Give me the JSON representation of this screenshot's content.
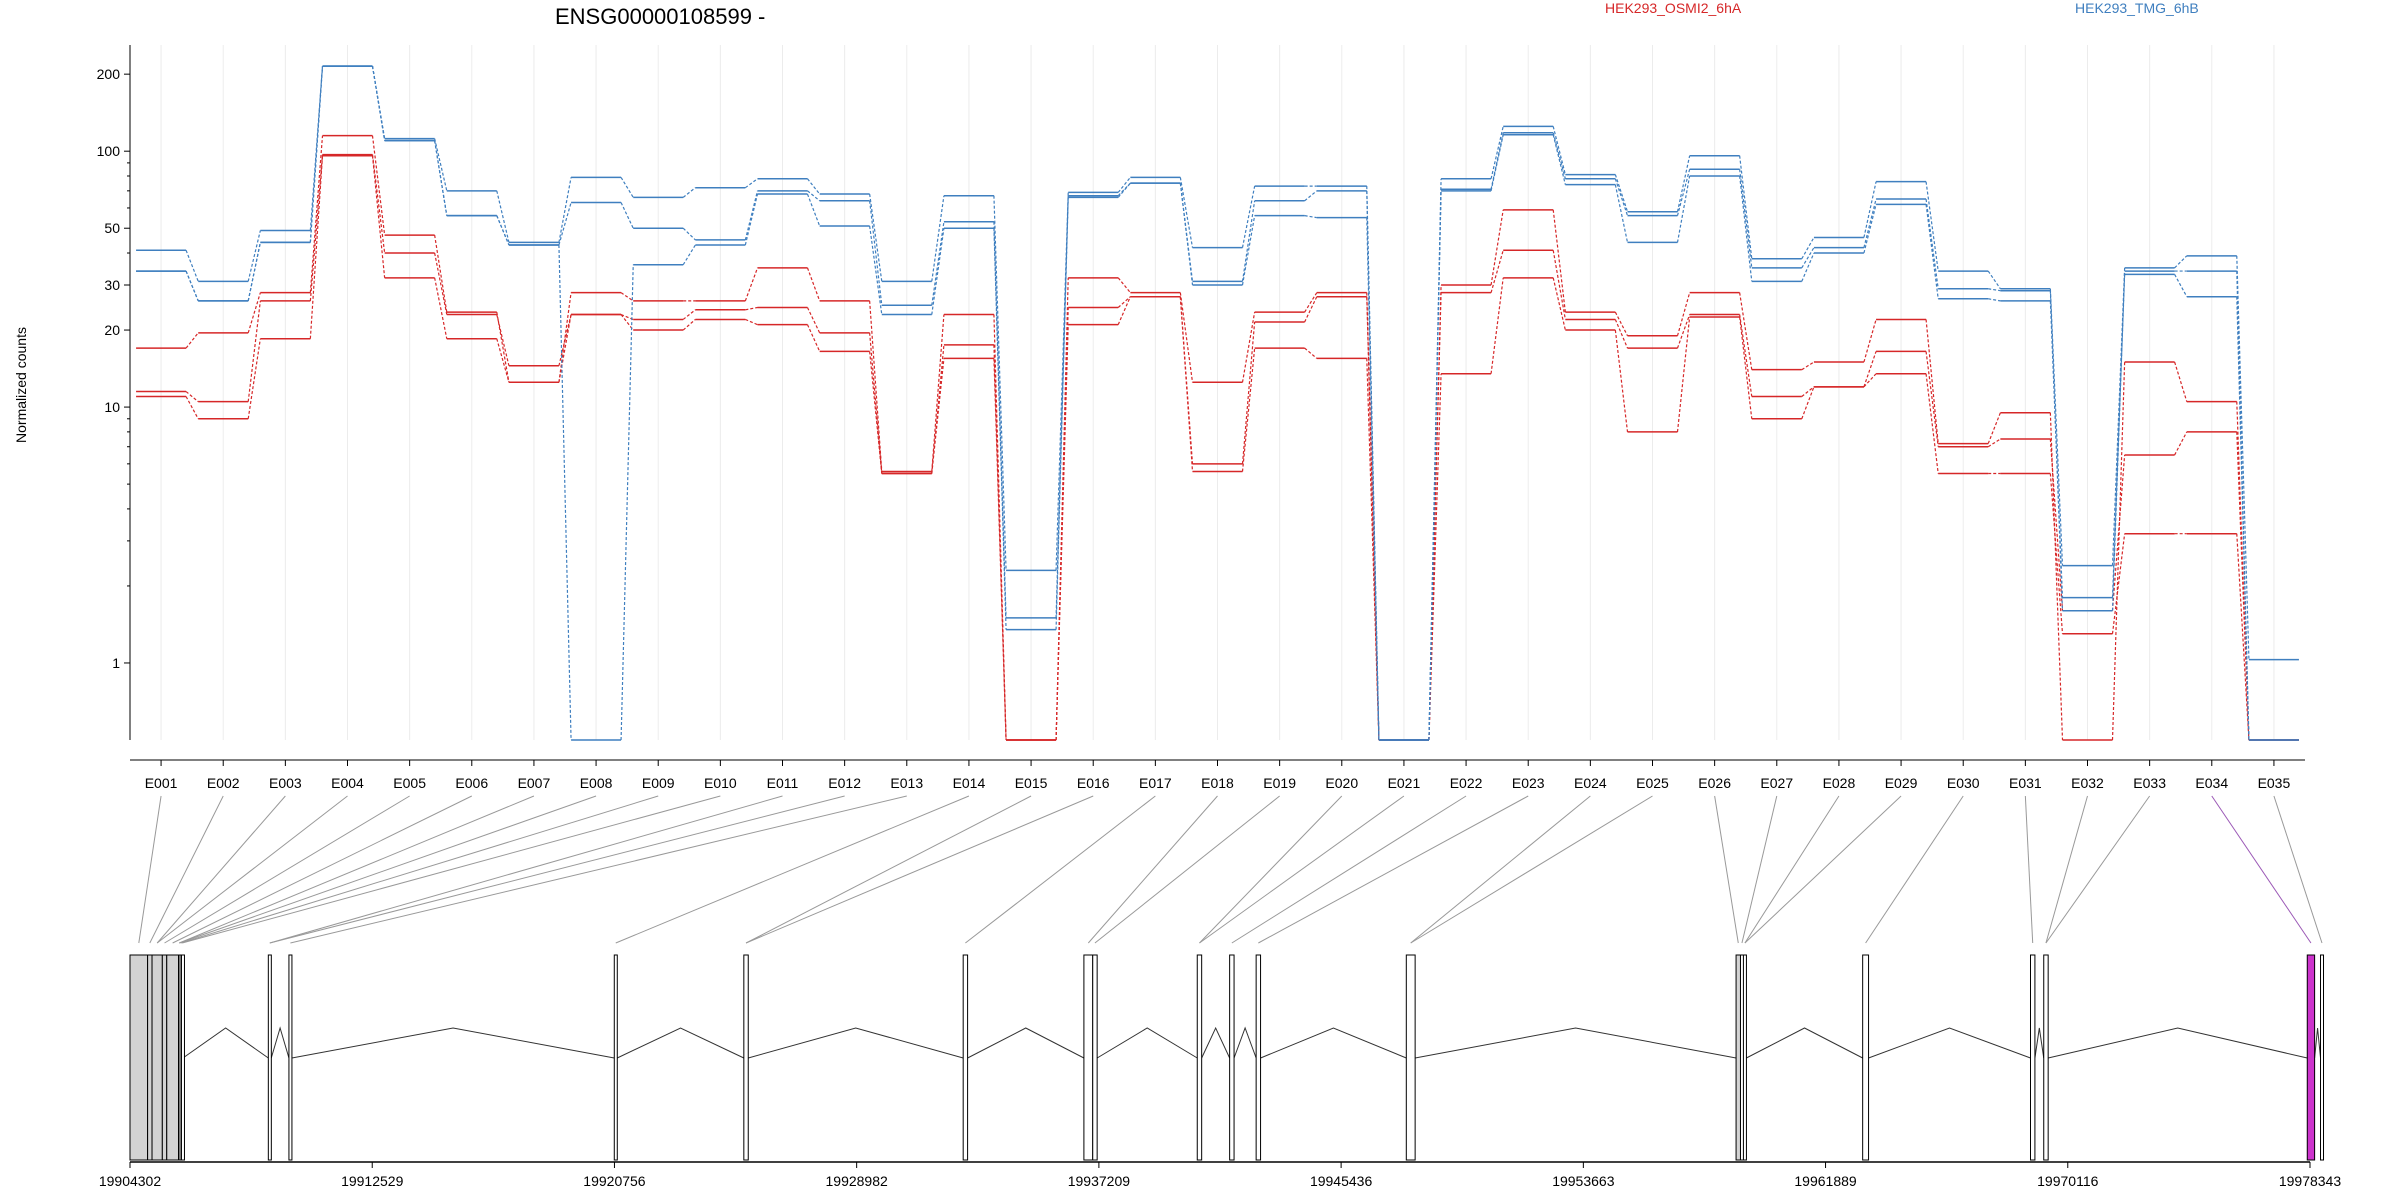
{
  "chart_data": {
    "type": "line",
    "title": "ENSG00000108599 -",
    "ylabel": "Normalized counts",
    "xlabel": "",
    "yscale": "log",
    "ylim": [
      0.5,
      260
    ],
    "yticks": [
      "1",
      "10",
      "20",
      "30",
      "50",
      "100",
      "200"
    ],
    "ytick_values": [
      1,
      10,
      20,
      30,
      50,
      100,
      200
    ],
    "categories": [
      "E001",
      "E002",
      "E003",
      "E004",
      "E005",
      "E006",
      "E007",
      "E008",
      "E009",
      "E010",
      "E011",
      "E012",
      "E013",
      "E014",
      "E015",
      "E016",
      "E017",
      "E018",
      "E019",
      "E020",
      "E021",
      "E022",
      "E023",
      "E024",
      "E025",
      "E026",
      "E027",
      "E028",
      "E029",
      "E030",
      "E031",
      "E032",
      "E033",
      "E034",
      "E035"
    ],
    "legend": [
      {
        "name": "HEK293_OSMI2_6hA",
        "color": "#d62728"
      },
      {
        "name": "HEK293_TMG_6hB",
        "color": "#3f7fbf"
      }
    ],
    "series": [
      {
        "group": "HEK293_OSMI2_6hA",
        "color": "#d62728",
        "values": [
          17,
          19.5,
          28,
          115,
          47,
          23.5,
          12.5,
          28,
          26,
          26,
          35,
          26,
          5.6,
          23,
          0.5,
          32,
          28,
          12.5,
          23.5,
          28,
          0.5,
          30,
          59,
          23.5,
          19,
          28,
          14,
          15,
          22,
          7.2,
          9.5,
          0.5,
          15,
          10.5,
          0.5
        ]
      },
      {
        "group": "HEK293_OSMI2_6hA",
        "color": "#d62728",
        "values": [
          11.5,
          10.5,
          26,
          97,
          40,
          23,
          14.5,
          23,
          22,
          24,
          24.5,
          19.5,
          5.5,
          17.5,
          0.5,
          24.5,
          27,
          6,
          21.5,
          27,
          0.5,
          28,
          41,
          22,
          17,
          23,
          11,
          12,
          16.5,
          7,
          7.5,
          1.6,
          6.5,
          8,
          0.5
        ]
      },
      {
        "group": "HEK293_OSMI2_6hA",
        "color": "#d62728",
        "values": [
          11,
          9,
          18.5,
          96,
          32,
          18.5,
          12.5,
          23,
          20,
          22,
          21,
          16.5,
          5.5,
          15.5,
          0.5,
          21,
          27,
          5.6,
          17,
          15.5,
          0.5,
          13.5,
          32,
          20,
          8,
          22.5,
          9,
          12,
          13.5,
          5.5,
          5.5,
          1.3,
          3.2,
          3.2,
          0.5
        ]
      },
      {
        "group": "HEK293_TMG_6hB",
        "color": "#3f7fbf",
        "values": [
          41,
          31,
          49,
          215,
          112,
          70,
          44,
          79,
          66,
          72,
          78,
          68,
          31,
          67,
          2.3,
          69,
          79,
          42,
          73,
          73,
          0.5,
          78,
          125,
          81,
          58,
          96,
          38,
          46,
          76,
          34,
          29,
          2.4,
          35,
          39,
          1.03
        ]
      },
      {
        "group": "HEK293_TMG_6hB",
        "color": "#3f7fbf",
        "values": [
          34,
          26,
          44,
          215,
          110,
          56,
          43,
          63,
          50,
          45,
          70,
          64,
          25,
          53,
          1.5,
          67,
          75,
          31,
          64,
          70,
          0.5,
          71,
          118,
          78,
          56,
          85,
          35,
          42,
          65,
          29,
          28.5,
          1.6,
          34,
          34,
          0.5
        ]
      },
      {
        "group": "HEK293_TMG_6hB",
        "color": "#3f7fbf",
        "values": [
          34,
          26,
          44,
          215,
          110,
          56,
          43,
          0.5,
          36,
          43,
          68,
          51,
          23,
          50,
          1.35,
          66,
          75,
          30,
          56,
          55,
          0.5,
          70,
          116,
          74,
          44,
          80,
          31,
          40,
          62,
          26.5,
          26,
          1.8,
          33,
          27,
          0.5
        ]
      }
    ],
    "exon_line_labels": [
      "E001",
      "E002",
      "E003",
      "E004",
      "E005",
      "E006",
      "E007",
      "E008",
      "E009",
      "E010",
      "E011",
      "E012",
      "E013",
      "E014",
      "E015",
      "E016",
      "E017",
      "E018",
      "E019",
      "E020",
      "E021",
      "E022",
      "E023",
      "E024",
      "E025",
      "E026",
      "E027",
      "E028",
      "E029",
      "E030",
      "E031",
      "E032",
      "E033",
      "E034",
      "E035"
    ],
    "genomic_axis": {
      "ticks": [
        "19904302",
        "19912529",
        "19920756",
        "19928982",
        "19937209",
        "19945436",
        "19953663",
        "19961889",
        "19970116",
        "19978343"
      ],
      "tick_values": [
        19904302,
        19912529,
        19920756,
        19928982,
        19937209,
        19945436,
        19953663,
        19961889,
        19970116,
        19978343
      ]
    },
    "exons": [
      {
        "id": "E001",
        "start": 19904302,
        "end": 19904900,
        "fill": "#d3d3d3"
      },
      {
        "id": "E002",
        "start": 19904900,
        "end": 19905050,
        "fill": "#d3d3d3"
      },
      {
        "id": "E003",
        "start": 19905050,
        "end": 19905400,
        "fill": "#d3d3d3"
      },
      {
        "id": "E004",
        "start": 19905400,
        "end": 19905550,
        "fill": "#d3d3d3"
      },
      {
        "id": "E005",
        "start": 19905550,
        "end": 19905950,
        "fill": "#d3d3d3"
      },
      {
        "id": "E006",
        "start": 19905950,
        "end": 19906000,
        "fill": "#ffffff"
      },
      {
        "id": "E007",
        "start": 19906000,
        "end": 19906050,
        "fill": "#ffffff"
      },
      {
        "id": "E008",
        "start": 19906050,
        "end": 19906100,
        "fill": "#ffffff"
      },
      {
        "id": "E009",
        "start": 19909000,
        "end": 19909100,
        "fill": "#ffffff"
      },
      {
        "id": "E010",
        "start": 19909700,
        "end": 19909800,
        "fill": "#ffffff"
      },
      {
        "id": "E011",
        "start": 19920750,
        "end": 19920850,
        "fill": "#ffffff"
      },
      {
        "id": "E012",
        "start": 19925150,
        "end": 19925300,
        "fill": "#ffffff"
      },
      {
        "id": "E013",
        "start": 19932600,
        "end": 19932750,
        "fill": "#ffffff"
      },
      {
        "id": "E014",
        "start": 19936700,
        "end": 19937000,
        "fill": "#ffffff"
      },
      {
        "id": "E015",
        "start": 19937000,
        "end": 19937150,
        "fill": "#ffffff"
      },
      {
        "id": "E016",
        "start": 19940550,
        "end": 19940700,
        "fill": "#ffffff"
      },
      {
        "id": "E017",
        "start": 19941650,
        "end": 19941800,
        "fill": "#ffffff"
      },
      {
        "id": "E018",
        "start": 19942550,
        "end": 19942700,
        "fill": "#ffffff"
      },
      {
        "id": "E019",
        "start": 19947650,
        "end": 19947950,
        "fill": "#ffffff"
      },
      {
        "id": "E020",
        "start": 19958850,
        "end": 19959000,
        "fill": "#d3d3d3"
      },
      {
        "id": "E021",
        "start": 19959000,
        "end": 19959100,
        "fill": "#ffffff"
      },
      {
        "id": "E022",
        "start": 19959100,
        "end": 19959200,
        "fill": "#ffffff"
      },
      {
        "id": "E023",
        "start": 19963150,
        "end": 19963350,
        "fill": "#ffffff"
      },
      {
        "id": "E024",
        "start": 19968850,
        "end": 19969000,
        "fill": "#ffffff"
      },
      {
        "id": "E025",
        "start": 19969300,
        "end": 19969450,
        "fill": "#ffffff"
      },
      {
        "id": "E026",
        "start": 19978250,
        "end": 19978500,
        "fill": "#cc33cc"
      },
      {
        "id": "E027",
        "start": 19978700,
        "end": 19978800,
        "fill": "#ffffff"
      }
    ]
  }
}
